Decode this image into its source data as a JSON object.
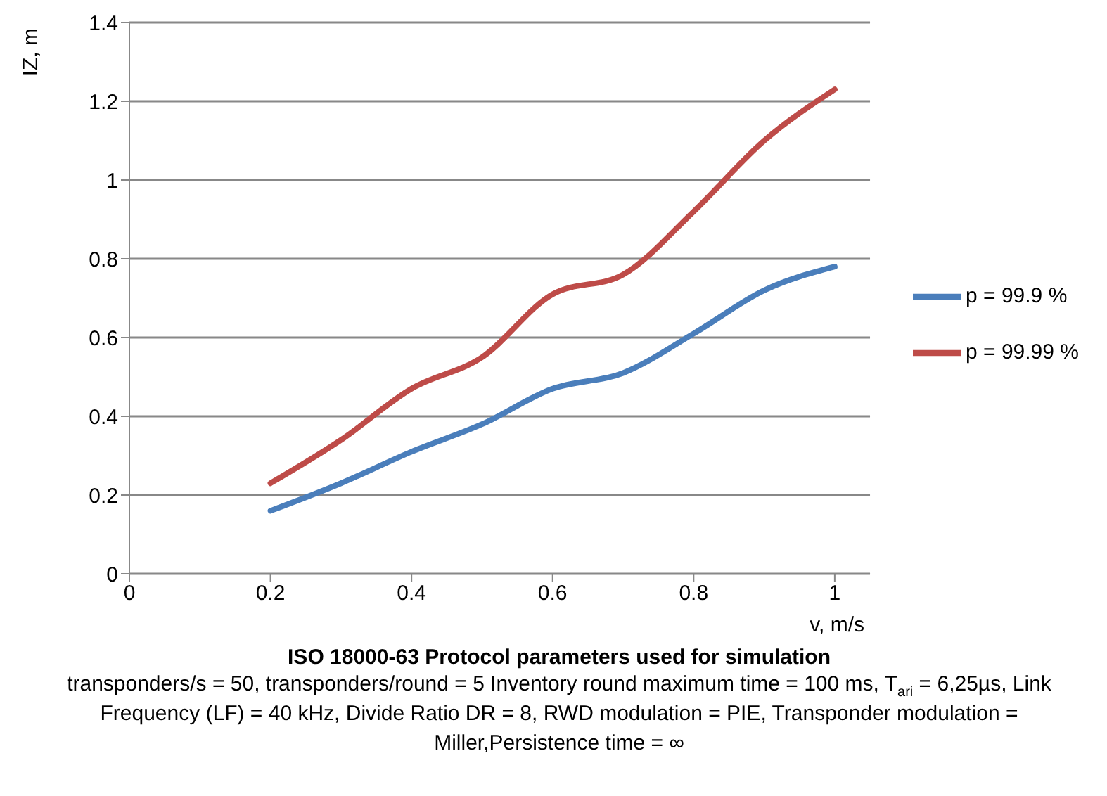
{
  "chart_data": {
    "type": "line",
    "title": "ISO 18000-63 Protocol parameters used for simulation",
    "xlabel": "v, m/s",
    "ylabel": "IZ, m",
    "x": [
      0.2,
      0.3,
      0.4,
      0.5,
      0.6,
      0.7,
      0.8,
      0.9,
      1.0
    ],
    "series": [
      {
        "name": "p = 99.9 %",
        "color": "#4a7ebb",
        "values": [
          0.16,
          0.23,
          0.31,
          0.38,
          0.47,
          0.51,
          0.61,
          0.72,
          0.78
        ]
      },
      {
        "name": "p = 99.99 %",
        "color": "#be4b48",
        "values": [
          0.23,
          0.34,
          0.47,
          0.55,
          0.71,
          0.76,
          0.92,
          1.1,
          1.23
        ]
      }
    ],
    "xlim": [
      0,
      1.05
    ],
    "xticks": [
      0,
      0.2,
      0.4,
      0.6,
      0.8,
      1
    ],
    "ylim": [
      0,
      1.4
    ],
    "yticks": [
      0,
      0.2,
      0.4,
      0.6,
      0.8,
      1,
      1.2,
      1.4
    ],
    "grid": "y",
    "legend": "right",
    "marker": "none",
    "line_style": "solid",
    "annotations": [
      "transponders/s =  50, transponders/round =  5 Inventory round maximum time  =  100 ms, T$_{ari}$ = 6,25µs, Link Frequency (LF) =  40 kHz, Divide Ratio DR =  8, RWD modulation = PIE, Transponder modulation = Miller,Persistence time =  ∞"
    ]
  }
}
